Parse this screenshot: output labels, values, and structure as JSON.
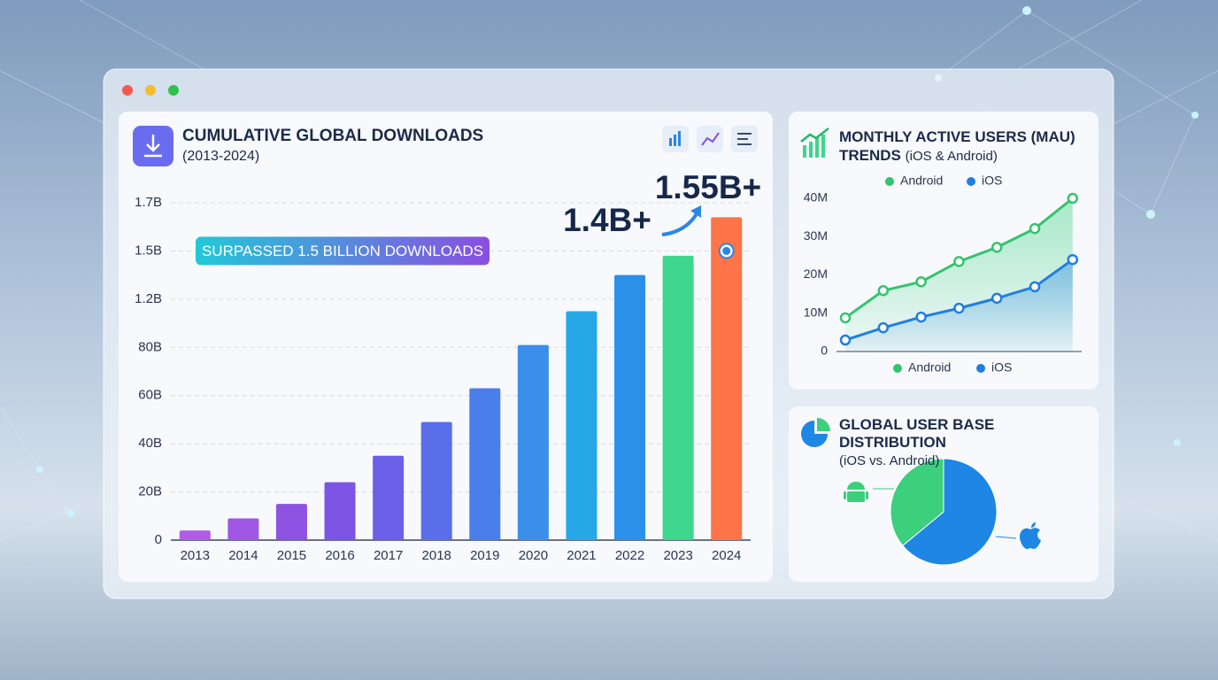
{
  "chart_data": [
    {
      "type": "bar",
      "title": "CUMULATIVE GLOBAL DOWNLOADS",
      "subtitle": "(2013-2024)",
      "categories": [
        "2013",
        "2014",
        "2015",
        "2016",
        "2017",
        "2018",
        "2019",
        "2020",
        "2021",
        "2022",
        "2023",
        "2024"
      ],
      "values": [
        0.04,
        0.09,
        0.15,
        0.24,
        0.35,
        0.49,
        0.63,
        0.82,
        1.1,
        1.35,
        1.47,
        1.64
      ],
      "colors": [
        "#b05ce6",
        "#a056e4",
        "#8e52e2",
        "#7c55e4",
        "#6b60e8",
        "#5a6eea",
        "#4a7eea",
        "#3b8eea",
        "#27a8e6",
        "#2a90ea",
        "#3dd68c",
        "#ff7448"
      ],
      "ylim": [
        0,
        1.7
      ],
      "yticks": [
        0,
        {
          "value": 0.2,
          "label": "20B"
        },
        {
          "value": 0.4,
          "label": "40B"
        },
        {
          "value": 0.6,
          "label": "60B"
        },
        {
          "value": 0.8,
          "label": "80B"
        },
        {
          "value": 1.2,
          "label": "1.2B"
        },
        {
          "value": 1.5,
          "label": "1.5B"
        },
        {
          "value": 1.7,
          "label": "1.7B"
        }
      ],
      "grid": true,
      "hline": 1.5,
      "annotations": [
        "SURPASSED 1.5 BILLION DOWNLOADS",
        "1.4B+",
        "1.55B+"
      ]
    },
    {
      "type": "line",
      "title": "MONTHLY ACTIVE USERS (MAU) TRENDS",
      "subtitle": "(iOS & Android)",
      "categories": [
        null,
        null,
        null,
        null,
        null,
        null,
        null
      ],
      "series": [
        {
          "name": "Android",
          "color": "#33c46e",
          "values": [
            8.8,
            15.9,
            18.2,
            23.5,
            27.2,
            32.1,
            40
          ]
        },
        {
          "name": "iOS",
          "color": "#1f7fe0",
          "values": [
            3.0,
            6.2,
            9.0,
            11.3,
            13.9,
            16.9,
            24.0
          ]
        }
      ],
      "ylim": [
        0,
        40
      ],
      "yticks": [
        0,
        {
          "value": 10,
          "label": "10M"
        },
        {
          "value": 20,
          "label": "20M"
        },
        {
          "value": 30,
          "label": "30M"
        },
        {
          "value": 40,
          "label": "40M"
        }
      ]
    },
    {
      "type": "pie",
      "title": "GLOBAL USER BASE DISTRIBUTION",
      "subtitle": "(iOS vs. Android)",
      "values": [
        64,
        36
      ],
      "colors": [
        "#1e86e4",
        "#3ccf7c"
      ]
    }
  ]
}
